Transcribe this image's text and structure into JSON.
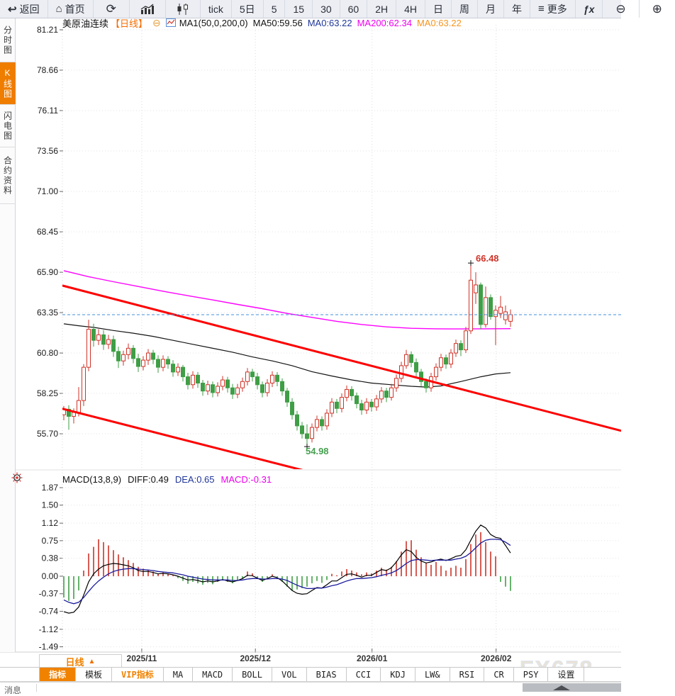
{
  "toolbar": {
    "back_icon": "↩",
    "back": "返回",
    "home_icon": "⌂",
    "home": "首页",
    "refresh_icon": "⟳",
    "tick": "tick",
    "five_day": "5日",
    "m5": "5",
    "m15": "15",
    "m30": "30",
    "m60": "60",
    "h2": "2H",
    "h4": "4H",
    "day": "日",
    "week": "周",
    "month": "月",
    "year": "年",
    "more_icon": "≡",
    "more": "更多",
    "fx": "ƒx",
    "zoom_out": "⊖",
    "zoom_in": "⊕"
  },
  "sidebar": {
    "items": [
      {
        "label": "分时图",
        "active": false
      },
      {
        "label": "K线图",
        "active": true
      },
      {
        "label": "闪电图",
        "active": false
      },
      {
        "label": "合约资料",
        "active": false
      }
    ]
  },
  "header": {
    "symbol": "美原油连续",
    "period_tag": "【日线】",
    "collapse_icon": "⊖",
    "ma_settings": "MA1(50,0,200,0)",
    "ma50": "MA50:59.56",
    "ma0_blue": "MA0:63.22",
    "ma200": "MA200:62.34",
    "ma0_orange": "MA0:63.22"
  },
  "macd_header": {
    "title": "MACD(13,8,9)",
    "diff": "DIFF:0.49",
    "dea": "DEA:0.65",
    "macd": "MACD:-0.31"
  },
  "bottom": {
    "period": "日线",
    "period_arrow": "▲",
    "tabs": [
      "指标",
      "模板",
      "VIP指标",
      "MA",
      "MACD",
      "BOLL",
      "VOL",
      "BIAS",
      "CCI",
      "KDJ",
      "LW&",
      "RSI",
      "CR",
      "PSY",
      "设置"
    ],
    "partial_left": "消息",
    "watermark": "FX678"
  },
  "colors": {
    "up": "#cf3328",
    "down": "#3f9e46",
    "trend": "#ff0000",
    "ma200": "#ff00ff",
    "ma50": "#141414",
    "diff": "#000000",
    "dea": "#1c1c9c",
    "last_price_line": "#3f8fdd",
    "accent": "#f08200",
    "grid": "#e3e3e3",
    "axis_text": "#1a1a1a",
    "annotation_high": "#cf3328",
    "annotation_low": "#46a050"
  },
  "chart_data": [
    {
      "type": "candlestick",
      "title": "美原油连续 日线",
      "y_ticks": [
        81.21,
        78.66,
        76.11,
        73.56,
        71.0,
        68.45,
        65.9,
        63.35,
        60.8,
        58.25,
        55.7
      ],
      "x_labels": [
        {
          "idx": 15.7,
          "label": "2025/11"
        },
        {
          "idx": 38.6,
          "label": "2025/12"
        },
        {
          "idx": 62.1,
          "label": "2026/01"
        },
        {
          "idx": 87.1,
          "label": "2026/02"
        }
      ],
      "last_price": 63.22,
      "high_annotation": {
        "idx": 82,
        "price": 66.48,
        "label": "66.48"
      },
      "low_annotation": {
        "idx": 49,
        "price": 54.98,
        "label": "54.98"
      },
      "trendlines": [
        {
          "x1_idx": -0.3,
          "p1": 65.06,
          "x2_idx": 112.3,
          "p2": 55.89
        },
        {
          "x1_idx": -0.3,
          "p1": 57.28,
          "x2_idx": 48.9,
          "p2": 53.34
        }
      ],
      "ma200": [
        [
          0,
          66.0
        ],
        [
          5,
          65.62
        ],
        [
          10,
          65.3
        ],
        [
          15,
          65.0
        ],
        [
          20,
          64.7
        ],
        [
          25,
          64.42
        ],
        [
          30,
          64.15
        ],
        [
          35,
          63.87
        ],
        [
          40,
          63.6
        ],
        [
          45,
          63.3
        ],
        [
          50,
          63.05
        ],
        [
          55,
          62.8
        ],
        [
          60,
          62.6
        ],
        [
          65,
          62.45
        ],
        [
          70,
          62.36
        ],
        [
          75,
          62.33
        ],
        [
          80,
          62.32
        ],
        [
          85,
          62.33
        ],
        [
          90,
          62.34
        ]
      ],
      "ma50": [
        [
          0,
          62.64
        ],
        [
          3,
          62.52
        ],
        [
          6,
          62.42
        ],
        [
          10,
          62.22
        ],
        [
          14,
          62.05
        ],
        [
          18,
          61.85
        ],
        [
          22,
          61.6
        ],
        [
          26,
          61.35
        ],
        [
          30,
          61.1
        ],
        [
          34,
          60.85
        ],
        [
          38,
          60.55
        ],
        [
          42,
          60.3
        ],
        [
          46,
          60.0
        ],
        [
          50,
          59.62
        ],
        [
          54,
          59.35
        ],
        [
          58,
          59.1
        ],
        [
          62,
          58.9
        ],
        [
          66,
          58.8
        ],
        [
          70,
          58.7
        ],
        [
          73,
          58.65
        ],
        [
          76,
          58.72
        ],
        [
          80,
          59.0
        ],
        [
          84,
          59.3
        ],
        [
          87,
          59.48
        ],
        [
          90,
          59.56
        ]
      ],
      "candles": [
        [
          56.9,
          57.45,
          56.55,
          57.25
        ],
        [
          57.25,
          57.5,
          55.95,
          56.8
        ],
        [
          56.8,
          57.3,
          56.35,
          57.05
        ],
        [
          57.05,
          58.65,
          56.8,
          57.8
        ],
        [
          57.8,
          60.1,
          57.45,
          59.9
        ],
        [
          59.9,
          62.9,
          59.65,
          62.3
        ],
        [
          62.3,
          62.65,
          61.2,
          61.6
        ],
        [
          61.6,
          62.3,
          61.3,
          61.95
        ],
        [
          61.95,
          62.25,
          61.0,
          61.35
        ],
        [
          61.35,
          61.95,
          61.05,
          61.65
        ],
        [
          61.65,
          61.9,
          60.55,
          60.9
        ],
        [
          60.9,
          61.2,
          59.85,
          60.3
        ],
        [
          60.3,
          60.95,
          60.0,
          60.7
        ],
        [
          60.7,
          61.4,
          60.4,
          61.1
        ],
        [
          61.1,
          61.3,
          60.15,
          60.45
        ],
        [
          60.45,
          60.75,
          59.6,
          59.95
        ],
        [
          59.95,
          60.6,
          59.7,
          60.35
        ],
        [
          60.35,
          61.05,
          60.05,
          60.8
        ],
        [
          60.8,
          61.0,
          60.1,
          60.4
        ],
        [
          60.4,
          60.65,
          59.55,
          59.9
        ],
        [
          59.9,
          60.65,
          59.65,
          60.4
        ],
        [
          60.4,
          60.6,
          59.8,
          60.1
        ],
        [
          60.1,
          60.35,
          59.3,
          59.6
        ],
        [
          59.6,
          60.15,
          59.35,
          59.9
        ],
        [
          59.9,
          60.05,
          59.0,
          59.3
        ],
        [
          59.3,
          59.55,
          58.5,
          58.8
        ],
        [
          58.8,
          59.65,
          58.55,
          59.4
        ],
        [
          59.4,
          59.6,
          58.6,
          58.9
        ],
        [
          58.9,
          59.1,
          58.1,
          58.4
        ],
        [
          58.4,
          59.05,
          58.15,
          58.8
        ],
        [
          58.8,
          59.0,
          58.0,
          58.3
        ],
        [
          58.3,
          58.95,
          58.05,
          58.7
        ],
        [
          58.7,
          59.35,
          58.45,
          59.1
        ],
        [
          59.1,
          59.3,
          58.3,
          58.6
        ],
        [
          58.6,
          58.85,
          57.9,
          58.2
        ],
        [
          58.2,
          58.85,
          57.95,
          58.6
        ],
        [
          58.6,
          59.25,
          58.35,
          59.0
        ],
        [
          59.0,
          59.85,
          58.75,
          59.6
        ],
        [
          59.6,
          59.8,
          59.0,
          59.3
        ],
        [
          59.3,
          59.55,
          58.5,
          58.8
        ],
        [
          58.8,
          59.0,
          58.0,
          58.3
        ],
        [
          58.3,
          59.15,
          58.05,
          58.9
        ],
        [
          58.9,
          59.65,
          58.65,
          59.4
        ],
        [
          59.4,
          59.6,
          58.7,
          59.0
        ],
        [
          59.0,
          59.2,
          58.1,
          58.4
        ],
        [
          58.4,
          58.6,
          57.4,
          57.7
        ],
        [
          57.7,
          57.95,
          56.6,
          56.9
        ],
        [
          56.9,
          57.15,
          55.9,
          56.2
        ],
        [
          56.2,
          56.45,
          55.4,
          55.7
        ],
        [
          55.7,
          56.3,
          54.98,
          55.4
        ],
        [
          55.4,
          56.35,
          55.15,
          56.1
        ],
        [
          56.1,
          56.85,
          55.85,
          56.6
        ],
        [
          56.6,
          56.8,
          55.9,
          56.2
        ],
        [
          56.2,
          57.25,
          55.95,
          57.0
        ],
        [
          57.0,
          57.95,
          56.75,
          57.7
        ],
        [
          57.7,
          57.9,
          57.0,
          57.3
        ],
        [
          57.3,
          58.25,
          57.05,
          58.0
        ],
        [
          58.0,
          58.75,
          57.75,
          58.5
        ],
        [
          58.5,
          58.7,
          57.8,
          58.1
        ],
        [
          58.1,
          58.3,
          57.3,
          57.6
        ],
        [
          57.6,
          57.85,
          56.9,
          57.2
        ],
        [
          57.2,
          57.95,
          56.95,
          57.7
        ],
        [
          57.7,
          57.9,
          57.1,
          57.4
        ],
        [
          57.4,
          58.15,
          57.15,
          57.9
        ],
        [
          57.9,
          58.65,
          57.65,
          58.4
        ],
        [
          58.4,
          58.6,
          57.7,
          58.0
        ],
        [
          58.0,
          58.85,
          57.8,
          58.6
        ],
        [
          58.6,
          59.45,
          58.35,
          59.2
        ],
        [
          59.2,
          60.25,
          58.95,
          60.0
        ],
        [
          60.0,
          61.0,
          59.8,
          60.7
        ],
        [
          60.7,
          60.9,
          59.9,
          60.2
        ],
        [
          60.2,
          60.45,
          59.3,
          59.6
        ],
        [
          59.6,
          59.8,
          58.7,
          59.0
        ],
        [
          59.0,
          59.2,
          58.3,
          58.6
        ],
        [
          58.6,
          59.55,
          58.35,
          59.3
        ],
        [
          59.3,
          60.15,
          59.05,
          59.9
        ],
        [
          59.9,
          60.75,
          59.65,
          60.5
        ],
        [
          60.5,
          60.7,
          59.8,
          60.1
        ],
        [
          60.1,
          61.05,
          59.85,
          60.8
        ],
        [
          60.8,
          61.65,
          60.55,
          61.4
        ],
        [
          61.4,
          61.6,
          60.6,
          61.0
        ],
        [
          61.0,
          62.45,
          60.8,
          62.2
        ],
        [
          62.2,
          66.48,
          62.0,
          65.4
        ],
        [
          64.6,
          65.9,
          63.9,
          65.1
        ],
        [
          65.1,
          65.25,
          62.3,
          62.6
        ],
        [
          62.6,
          65.0,
          62.4,
          64.3
        ],
        [
          64.3,
          64.5,
          62.9,
          63.1
        ],
        [
          63.1,
          63.8,
          61.3,
          63.5
        ],
        [
          63.3,
          64.4,
          63.0,
          63.7
        ],
        [
          62.9,
          63.8,
          62.6,
          63.4
        ],
        [
          62.8,
          63.55,
          62.45,
          63.22
        ]
      ]
    },
    {
      "type": "macd",
      "y_ticks": [
        1.87,
        1.5,
        1.12,
        0.75,
        0.38,
        0.0,
        -0.37,
        -0.74,
        -1.12,
        -1.49
      ],
      "hist": [
        -0.45,
        -0.52,
        -0.48,
        -0.3,
        0.12,
        0.48,
        0.62,
        0.78,
        0.72,
        0.65,
        0.55,
        0.46,
        0.4,
        0.34,
        0.28,
        0.2,
        0.16,
        0.14,
        0.1,
        0.06,
        0.08,
        0.05,
        0.02,
        -0.04,
        -0.1,
        -0.16,
        -0.12,
        -0.15,
        -0.18,
        -0.14,
        -0.17,
        -0.12,
        -0.08,
        -0.12,
        -0.15,
        -0.1,
        -0.05,
        0.1,
        0.06,
        -0.05,
        -0.12,
        -0.06,
        0.04,
        -0.02,
        -0.12,
        -0.22,
        -0.3,
        -0.28,
        -0.25,
        -0.22,
        -0.15,
        -0.1,
        -0.14,
        -0.08,
        0.05,
        0.02,
        0.1,
        0.15,
        0.12,
        0.08,
        0.04,
        0.08,
        0.06,
        0.12,
        0.18,
        0.14,
        0.2,
        0.32,
        0.52,
        0.74,
        0.76,
        0.56,
        0.4,
        0.28,
        0.24,
        0.3,
        0.22,
        0.12,
        0.18,
        0.22,
        0.18,
        0.36,
        0.68,
        0.88,
        0.93,
        0.72,
        0.52,
        0.42,
        -0.12,
        -0.22,
        -0.31
      ],
      "diff": [
        -0.75,
        -0.78,
        -0.76,
        -0.65,
        -0.4,
        -0.12,
        0.05,
        0.15,
        0.22,
        0.25,
        0.27,
        0.26,
        0.24,
        0.22,
        0.18,
        0.12,
        0.1,
        0.1,
        0.08,
        0.05,
        0.06,
        0.05,
        0.03,
        0.0,
        -0.04,
        -0.08,
        -0.07,
        -0.09,
        -0.12,
        -0.1,
        -0.12,
        -0.1,
        -0.07,
        -0.1,
        -0.12,
        -0.09,
        -0.05,
        0.02,
        0.01,
        -0.04,
        -0.09,
        -0.05,
        0.0,
        -0.03,
        -0.1,
        -0.2,
        -0.3,
        -0.36,
        -0.38,
        -0.37,
        -0.3,
        -0.24,
        -0.25,
        -0.18,
        -0.1,
        -0.1,
        -0.03,
        0.04,
        0.05,
        0.02,
        -0.02,
        0.02,
        0.02,
        0.08,
        0.14,
        0.12,
        0.18,
        0.3,
        0.45,
        0.56,
        0.52,
        0.4,
        0.32,
        0.28,
        0.3,
        0.34,
        0.36,
        0.33,
        0.37,
        0.42,
        0.44,
        0.56,
        0.76,
        0.95,
        1.08,
        1.02,
        0.88,
        0.82,
        0.8,
        0.65,
        0.49
      ],
      "dea": [
        -0.5,
        -0.55,
        -0.58,
        -0.55,
        -0.45,
        -0.32,
        -0.2,
        -0.1,
        -0.02,
        0.05,
        0.1,
        0.13,
        0.15,
        0.16,
        0.16,
        0.15,
        0.14,
        0.13,
        0.12,
        0.1,
        0.09,
        0.08,
        0.07,
        0.05,
        0.03,
        0.0,
        -0.02,
        -0.04,
        -0.06,
        -0.07,
        -0.08,
        -0.08,
        -0.08,
        -0.08,
        -0.09,
        -0.09,
        -0.08,
        -0.06,
        -0.05,
        -0.05,
        -0.06,
        -0.06,
        -0.05,
        -0.05,
        -0.06,
        -0.09,
        -0.14,
        -0.19,
        -0.23,
        -0.26,
        -0.26,
        -0.25,
        -0.25,
        -0.23,
        -0.2,
        -0.18,
        -0.14,
        -0.1,
        -0.07,
        -0.05,
        -0.05,
        -0.04,
        -0.03,
        -0.01,
        0.02,
        0.04,
        0.07,
        0.12,
        0.19,
        0.27,
        0.33,
        0.35,
        0.35,
        0.34,
        0.33,
        0.34,
        0.34,
        0.34,
        0.34,
        0.36,
        0.38,
        0.42,
        0.5,
        0.6,
        0.7,
        0.76,
        0.78,
        0.78,
        0.77,
        0.72,
        0.65
      ]
    }
  ]
}
